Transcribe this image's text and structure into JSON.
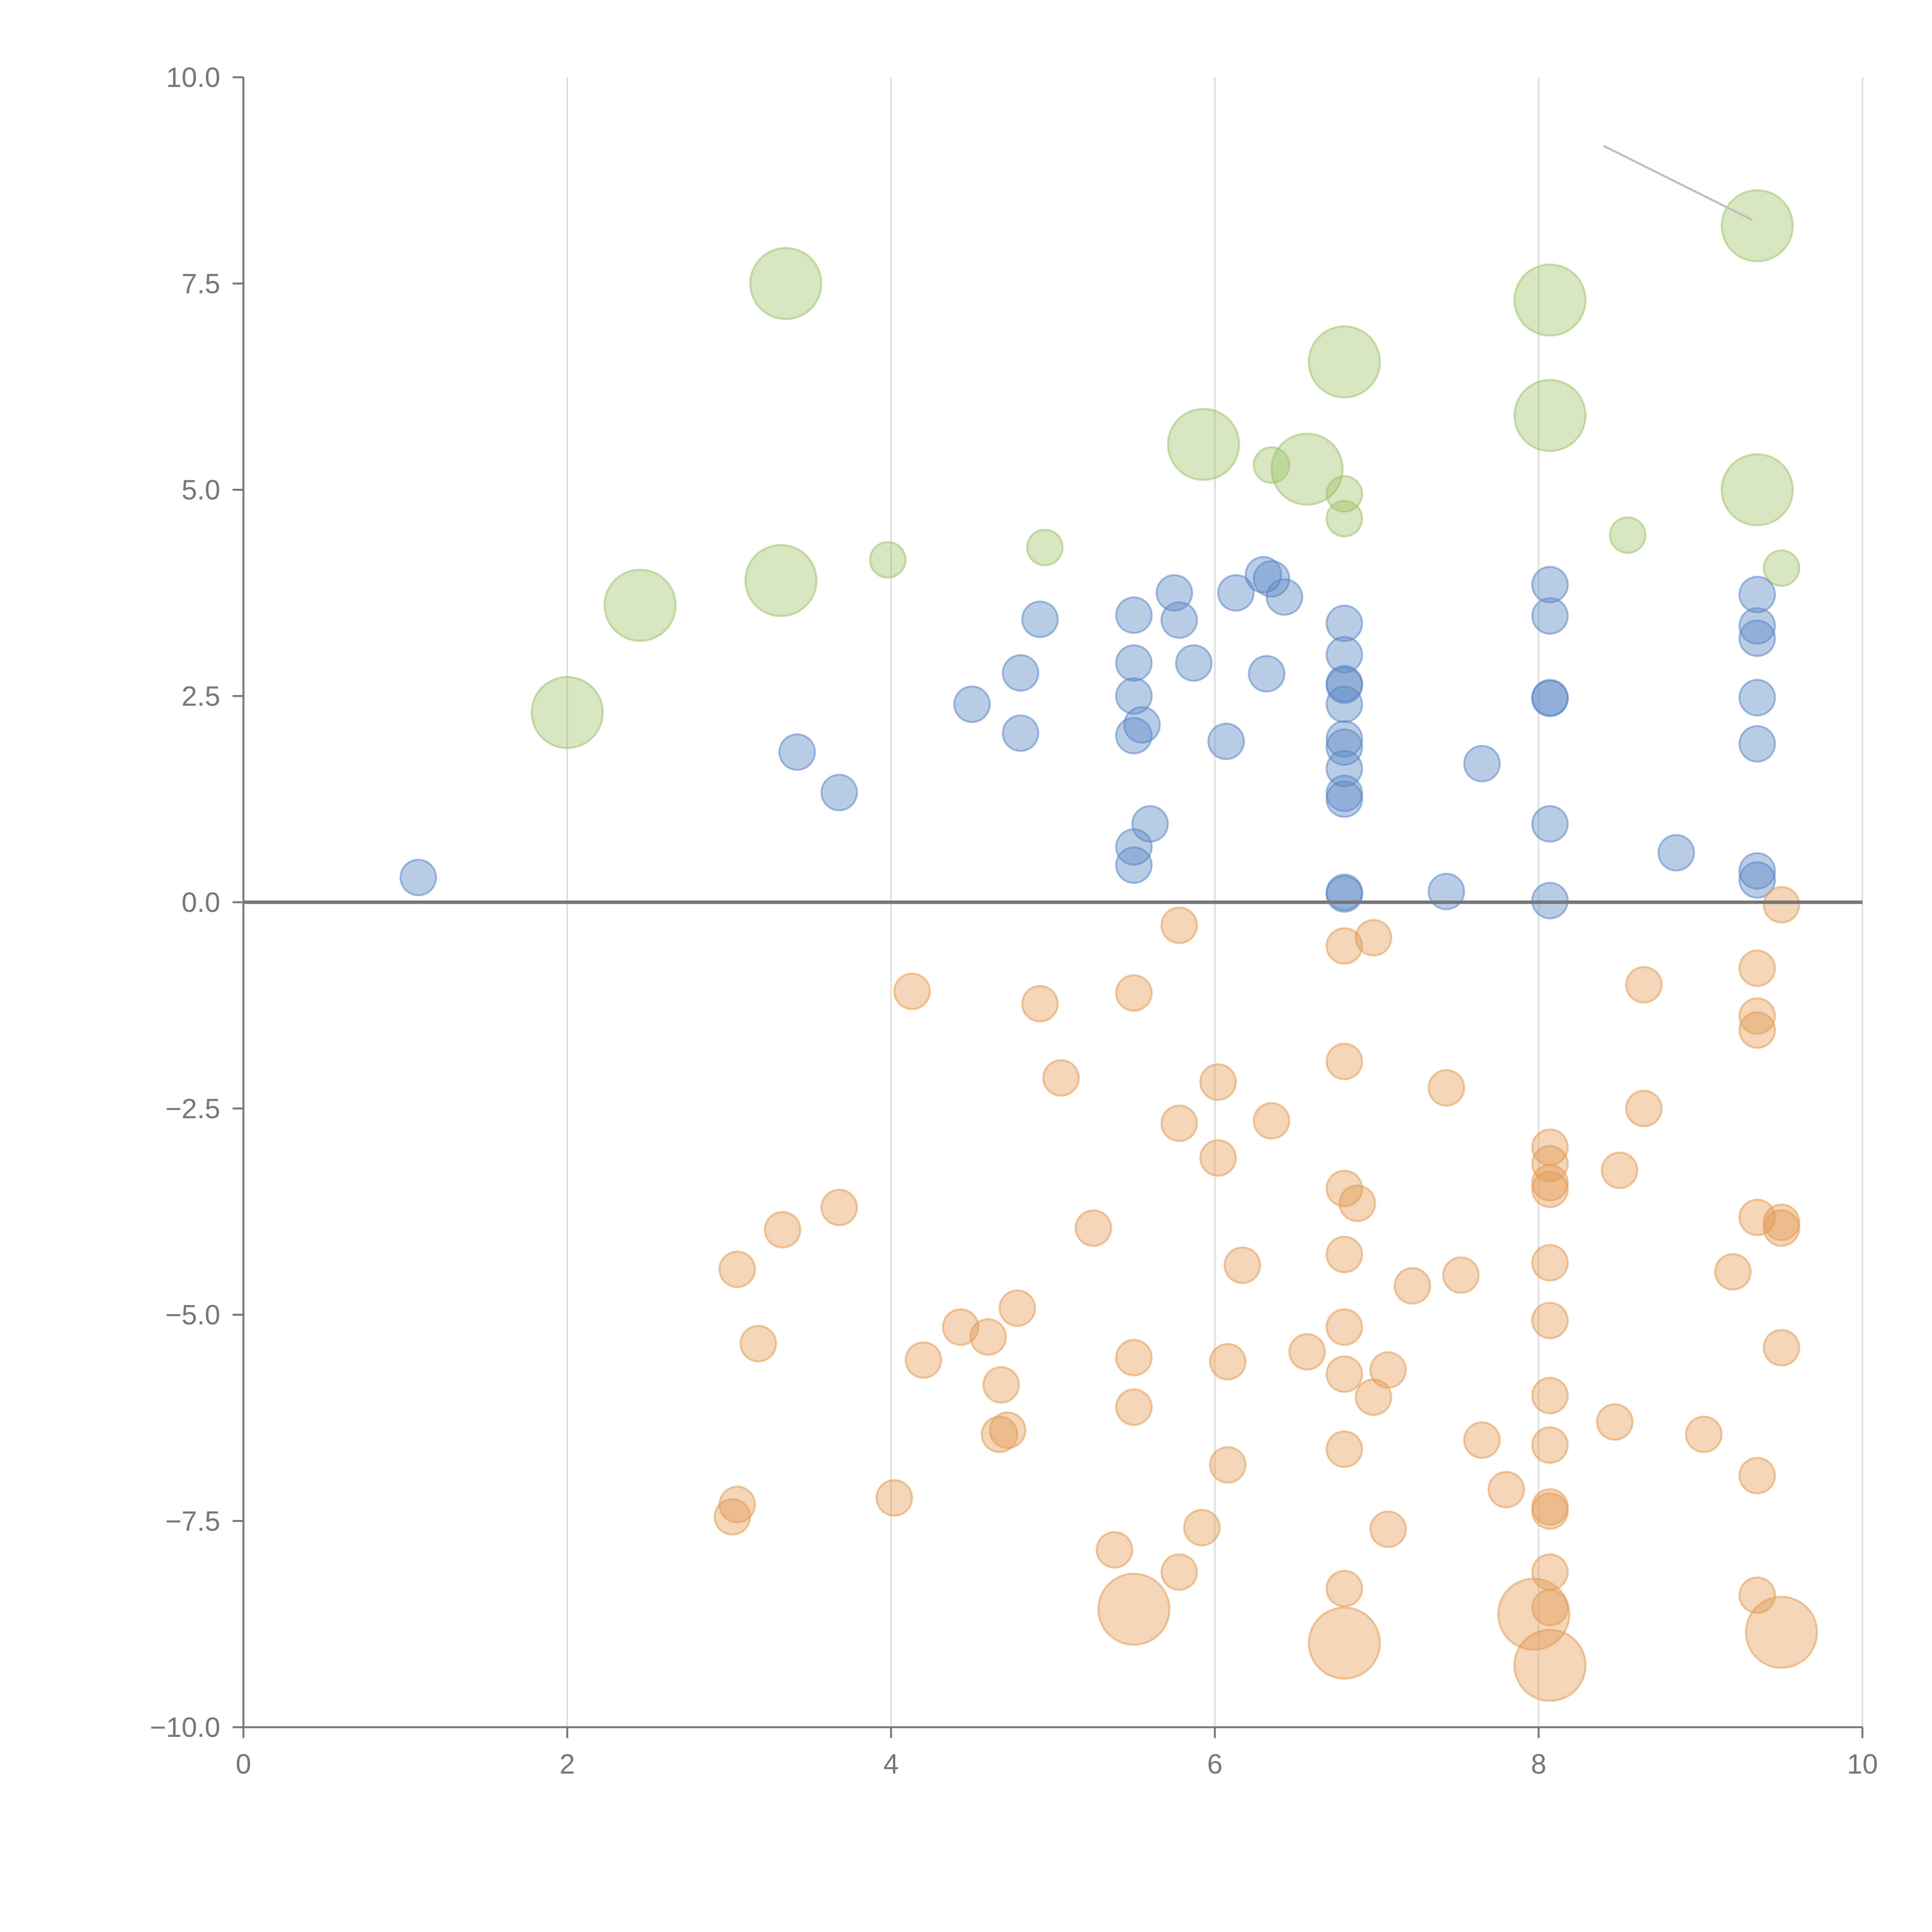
{
  "chart_data": {
    "type": "scatter",
    "title": "",
    "xlabel": "",
    "ylabel": "",
    "xlim": [
      0,
      10
    ],
    "ylim": [
      -10,
      10
    ],
    "x_ticks": [
      "0",
      "2",
      "4",
      "6",
      "8",
      "10"
    ],
    "y_ticks": [
      "10.0",
      "7.5",
      "5.0",
      "2.5",
      "0.0",
      "−2.5",
      "−5.0",
      "−7.5",
      "−10.0"
    ],
    "x_tick_values": [
      0,
      2,
      4,
      6,
      8,
      10
    ],
    "y_tick_values": [
      10,
      7.5,
      5,
      2.5,
      0,
      -2.5,
      -5,
      -7.5,
      -10
    ],
    "grid": "vertical",
    "legend": "none",
    "size_encoding": "bubble area; larger bubbles = highlighted points",
    "colors": {
      "green": "#9fc36a",
      "blue": "#5b87c6",
      "orange": "#e39a55",
      "axis": "#777777",
      "grid": "#dddddd"
    },
    "series": [
      {
        "color": "green",
        "points": [
          [
            2.0,
            2.3,
            2
          ],
          [
            2.45,
            3.6,
            2
          ],
          [
            3.35,
            7.5,
            2
          ],
          [
            3.32,
            3.9,
            2
          ],
          [
            3.98,
            4.15,
            1
          ],
          [
            4.95,
            4.3,
            1
          ],
          [
            5.93,
            5.55,
            2
          ],
          [
            6.35,
            5.3,
            1
          ],
          [
            6.57,
            5.25,
            2
          ],
          [
            6.8,
            6.55,
            2
          ],
          [
            6.8,
            4.95,
            1
          ],
          [
            6.8,
            4.65,
            1
          ],
          [
            8.07,
            7.3,
            2
          ],
          [
            8.07,
            5.9,
            2
          ],
          [
            8.55,
            4.45,
            1
          ],
          [
            9.35,
            8.2,
            2
          ],
          [
            9.35,
            5.0,
            2
          ],
          [
            9.5,
            4.05,
            1
          ]
        ]
      },
      {
        "color": "blue",
        "points": [
          [
            1.08,
            0.3,
            1
          ],
          [
            3.42,
            1.82,
            1
          ],
          [
            3.68,
            1.33,
            1
          ],
          [
            4.5,
            2.4,
            1
          ],
          [
            4.8,
            2.78,
            1
          ],
          [
            4.8,
            2.05,
            1
          ],
          [
            4.92,
            3.43,
            1
          ],
          [
            5.5,
            3.48,
            1
          ],
          [
            5.5,
            2.9,
            1
          ],
          [
            5.5,
            2.5,
            1
          ],
          [
            5.55,
            2.15,
            1
          ],
          [
            5.5,
            2.02,
            1
          ],
          [
            5.6,
            0.95,
            1
          ],
          [
            5.5,
            0.67,
            1
          ],
          [
            5.5,
            0.45,
            1
          ],
          [
            5.75,
            3.75,
            1
          ],
          [
            5.78,
            3.42,
            1
          ],
          [
            5.87,
            2.9,
            1
          ],
          [
            6.07,
            1.95,
            1
          ],
          [
            6.13,
            3.75,
            1
          ],
          [
            6.3,
            3.97,
            1
          ],
          [
            6.35,
            3.92,
            1
          ],
          [
            6.43,
            3.7,
            1
          ],
          [
            6.32,
            2.77,
            1
          ],
          [
            6.8,
            3.38,
            1
          ],
          [
            6.8,
            3.0,
            1
          ],
          [
            6.8,
            2.65,
            1
          ],
          [
            6.8,
            2.63,
            1
          ],
          [
            6.8,
            2.4,
            1
          ],
          [
            6.8,
            1.98,
            1
          ],
          [
            6.8,
            1.88,
            1
          ],
          [
            6.8,
            1.62,
            1
          ],
          [
            6.8,
            1.32,
            1
          ],
          [
            6.8,
            1.25,
            1
          ],
          [
            6.8,
            0.12,
            1
          ],
          [
            6.8,
            0.1,
            1
          ],
          [
            7.43,
            0.13,
            1
          ],
          [
            7.65,
            1.68,
            1
          ],
          [
            8.07,
            3.85,
            1
          ],
          [
            8.07,
            3.47,
            1
          ],
          [
            8.07,
            2.48,
            1
          ],
          [
            8.07,
            2.47,
            1
          ],
          [
            8.07,
            0.95,
            1
          ],
          [
            8.07,
            0.02,
            1
          ],
          [
            8.85,
            0.6,
            1
          ],
          [
            9.35,
            3.73,
            1
          ],
          [
            9.35,
            3.35,
            1
          ],
          [
            9.35,
            3.2,
            1
          ],
          [
            9.35,
            2.48,
            1
          ],
          [
            9.35,
            1.92,
            1
          ],
          [
            9.35,
            0.38,
            1
          ],
          [
            9.35,
            0.27,
            1
          ]
        ]
      },
      {
        "color": "orange",
        "points": [
          [
            3.05,
            -4.45,
            1
          ],
          [
            3.18,
            -5.35,
            1
          ],
          [
            3.05,
            -7.3,
            1
          ],
          [
            3.02,
            -7.45,
            1
          ],
          [
            3.33,
            -3.97,
            1
          ],
          [
            3.68,
            -3.7,
            1
          ],
          [
            4.02,
            -7.22,
            1
          ],
          [
            4.13,
            -1.08,
            1
          ],
          [
            4.2,
            -5.55,
            1
          ],
          [
            4.43,
            -5.15,
            1
          ],
          [
            4.6,
            -5.27,
            1
          ],
          [
            4.68,
            -5.85,
            1
          ],
          [
            4.67,
            -6.45,
            1
          ],
          [
            4.72,
            -6.4,
            1
          ],
          [
            4.78,
            -4.92,
            1
          ],
          [
            4.92,
            -1.23,
            1
          ],
          [
            5.05,
            -2.13,
            1
          ],
          [
            5.25,
            -3.95,
            1
          ],
          [
            5.38,
            -7.85,
            1
          ],
          [
            5.5,
            -1.1,
            1
          ],
          [
            5.5,
            -5.52,
            1
          ],
          [
            5.5,
            -6.12,
            1
          ],
          [
            5.5,
            -8.57,
            2
          ],
          [
            5.78,
            -0.28,
            1
          ],
          [
            5.78,
            -2.68,
            1
          ],
          [
            5.78,
            -8.12,
            1
          ],
          [
            5.92,
            -7.58,
            1
          ],
          [
            6.02,
            -2.18,
            1
          ],
          [
            6.02,
            -3.1,
            1
          ],
          [
            6.08,
            -5.57,
            1
          ],
          [
            6.08,
            -6.82,
            1
          ],
          [
            6.17,
            -4.4,
            1
          ],
          [
            6.35,
            -2.65,
            1
          ],
          [
            6.57,
            -5.45,
            1
          ],
          [
            6.8,
            -0.53,
            1
          ],
          [
            6.8,
            -1.93,
            1
          ],
          [
            6.8,
            -3.47,
            1
          ],
          [
            6.8,
            -4.27,
            1
          ],
          [
            6.8,
            -5.15,
            1
          ],
          [
            6.8,
            -5.72,
            1
          ],
          [
            6.8,
            -6.63,
            1
          ],
          [
            6.8,
            -8.32,
            1
          ],
          [
            6.8,
            -8.98,
            2
          ],
          [
            6.88,
            -3.65,
            1
          ],
          [
            6.98,
            -0.43,
            1
          ],
          [
            6.98,
            -6.0,
            1
          ],
          [
            7.07,
            -5.67,
            1
          ],
          [
            7.07,
            -7.6,
            1
          ],
          [
            7.22,
            -4.65,
            1
          ],
          [
            7.43,
            -2.25,
            1
          ],
          [
            7.52,
            -4.52,
            1
          ],
          [
            7.65,
            -6.52,
            1
          ],
          [
            7.8,
            -7.12,
            1
          ],
          [
            7.97,
            -8.63,
            2
          ],
          [
            8.07,
            -2.97,
            1
          ],
          [
            8.07,
            -3.17,
            1
          ],
          [
            8.07,
            -3.4,
            1
          ],
          [
            8.07,
            -3.48,
            1
          ],
          [
            8.07,
            -4.37,
            1
          ],
          [
            8.07,
            -5.07,
            1
          ],
          [
            8.07,
            -5.98,
            1
          ],
          [
            8.07,
            -6.58,
            1
          ],
          [
            8.07,
            -7.33,
            1
          ],
          [
            8.07,
            -7.38,
            1
          ],
          [
            8.07,
            -8.12,
            1
          ],
          [
            8.07,
            -8.55,
            1
          ],
          [
            8.07,
            -9.25,
            2
          ],
          [
            8.47,
            -6.3,
            1
          ],
          [
            8.5,
            -3.25,
            1
          ],
          [
            8.65,
            -1.0,
            1
          ],
          [
            8.65,
            -2.5,
            1
          ],
          [
            9.02,
            -6.45,
            1
          ],
          [
            9.2,
            -4.48,
            1
          ],
          [
            9.35,
            -0.8,
            1
          ],
          [
            9.35,
            -1.38,
            1
          ],
          [
            9.35,
            -1.55,
            1
          ],
          [
            9.35,
            -3.82,
            1
          ],
          [
            9.35,
            -6.95,
            1
          ],
          [
            9.35,
            -8.4,
            1
          ],
          [
            9.5,
            -0.03,
            1
          ],
          [
            9.5,
            -3.88,
            1
          ],
          [
            9.5,
            -3.95,
            1
          ],
          [
            9.5,
            -5.4,
            1
          ],
          [
            9.5,
            -8.85,
            2
          ]
        ]
      }
    ],
    "leader_line": {
      "from": [
        8.4,
        9.17
      ],
      "to": [
        9.32,
        8.27
      ]
    }
  }
}
